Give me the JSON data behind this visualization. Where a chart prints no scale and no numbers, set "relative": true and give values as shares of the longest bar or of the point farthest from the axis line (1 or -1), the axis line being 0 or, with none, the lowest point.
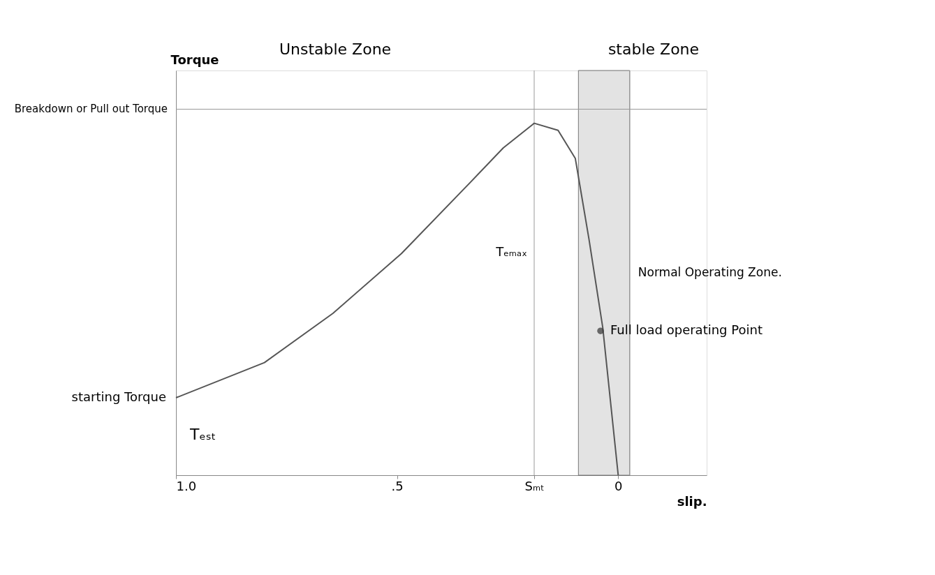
{
  "chart_data": {
    "type": "line",
    "relative": true,
    "xlabel": "slip.",
    "ylabel": "Torque",
    "xlim": [
      1.0,
      -0.2
    ],
    "xticks": [
      {
        "value": 1.0,
        "label": "1.0"
      },
      {
        "value": 0.5,
        "label": ".5"
      },
      {
        "value": 0.19,
        "label": "Sₘₜ"
      },
      0
    ],
    "series": [
      {
        "color": "#555555",
        "x": [
          1.0,
          0.8,
          0.645,
          0.49,
          0.336,
          0.26,
          0.19,
          0.136,
          0.097,
          0.066,
          0.035,
          0.0
        ],
        "values": [
          0.22,
          0.32,
          0.46,
          0.63,
          0.83,
          0.93,
          1.0,
          0.98,
          0.9,
          0.67,
          0.42,
          0.0
        ]
      },
      {
        "type": "scatter",
        "color": "#333333",
        "marker": "circle",
        "x": [
          0.04
        ],
        "values": [
          0.41
        ]
      }
    ],
    "ref_lines": [
      {
        "axis": "y",
        "value": 1.04,
        "label": "Breakdown or Pull out Torque",
        "color": "#999999"
      },
      {
        "axis": "x",
        "value": 0.19,
        "label": "Tₑₘₐₓ",
        "color": "#999999"
      },
      {
        "axis": "x",
        "value": -0.026,
        "label": null,
        "color": "#999999"
      }
    ],
    "bands": [
      {
        "axis": "x",
        "from": 0.09,
        "to": -0.026,
        "label": "Normal Operating Zone.",
        "color": "#dddddd"
      }
    ],
    "annotations": [
      "Unstable Zone",
      "stable Zone",
      "Tₑₛₜ",
      {
        "text": "starting Torque",
        "x": 1.0,
        "y": 0.22
      },
      {
        "text": "Full load operating Point",
        "x": 0.04,
        "y": 0.41
      }
    ],
    "grid": false
  }
}
